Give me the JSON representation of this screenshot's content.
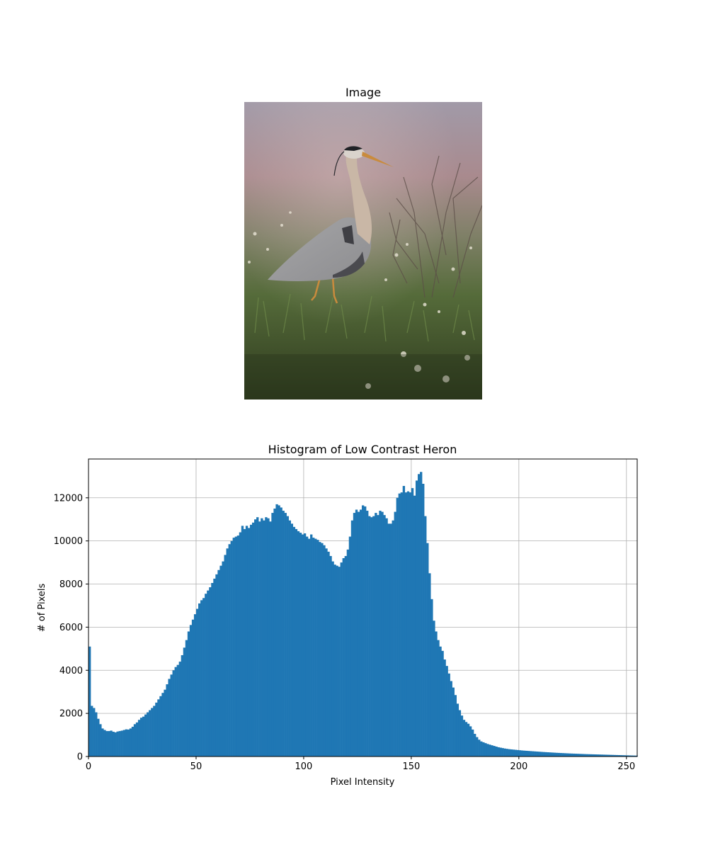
{
  "image_panel": {
    "title": "Image",
    "scene": {
      "sky_top": "#a19aa8",
      "sky_pink": "#a98a8e",
      "grass_dark": "#2e3a1d",
      "grass_mid": "#556b3a",
      "heron_body": "#8d8d90",
      "heron_neck": "#c9b7a6",
      "heron_beak": "#c98b3d"
    }
  },
  "chart_data": {
    "type": "bar",
    "title": "Histogram of Low Contrast Heron",
    "xlabel": "Pixel Intensity",
    "ylabel": "# of Pixels",
    "xlim": [
      0,
      255
    ],
    "ylim": [
      0,
      13800
    ],
    "xticks": [
      0,
      50,
      100,
      150,
      200,
      250
    ],
    "yticks": [
      0,
      2000,
      4000,
      6000,
      8000,
      10000,
      12000
    ],
    "grid": true,
    "bar_color": "#1f77b4",
    "bin_width": 1,
    "values": [
      5100,
      2350,
      2250,
      2050,
      1750,
      1500,
      1300,
      1230,
      1180,
      1180,
      1200,
      1150,
      1120,
      1160,
      1180,
      1200,
      1230,
      1260,
      1250,
      1300,
      1380,
      1500,
      1580,
      1700,
      1800,
      1850,
      1950,
      2050,
      2150,
      2250,
      2350,
      2500,
      2650,
      2800,
      2950,
      3100,
      3350,
      3600,
      3800,
      4000,
      4150,
      4250,
      4400,
      4700,
      5050,
      5400,
      5800,
      6100,
      6350,
      6600,
      6850,
      7100,
      7250,
      7350,
      7550,
      7700,
      7850,
      8050,
      8250,
      8450,
      8650,
      8850,
      9050,
      9350,
      9650,
      9850,
      10000,
      10150,
      10200,
      10250,
      10400,
      10700,
      10550,
      10700,
      10600,
      10750,
      10850,
      11000,
      11100,
      10900,
      11050,
      10950,
      11100,
      11050,
      10900,
      11300,
      11500,
      11700,
      11650,
      11550,
      11400,
      11300,
      11150,
      10950,
      10800,
      10650,
      10550,
      10450,
      10380,
      10300,
      10350,
      10200,
      10100,
      10300,
      10150,
      10100,
      10050,
      9950,
      9900,
      9800,
      9650,
      9500,
      9300,
      9050,
      8900,
      8850,
      8800,
      9000,
      9200,
      9300,
      9600,
      10200,
      10950,
      11300,
      11450,
      11350,
      11450,
      11650,
      11600,
      11400,
      11150,
      11100,
      11150,
      11300,
      11200,
      11400,
      11350,
      11200,
      11050,
      10800,
      10800,
      10950,
      11350,
      12000,
      12200,
      12250,
      12550,
      12250,
      12300,
      12250,
      12450,
      12100,
      12800,
      13100,
      13200,
      12650,
      11150,
      9900,
      8500,
      7300,
      6300,
      5800,
      5400,
      5100,
      4900,
      4500,
      4200,
      3850,
      3500,
      3200,
      2850,
      2450,
      2150,
      1900,
      1700,
      1600,
      1520,
      1400,
      1250,
      1050,
      900,
      780,
      700,
      660,
      620,
      580,
      550,
      520,
      490,
      460,
      430,
      410,
      390,
      370,
      355,
      340,
      330,
      320,
      310,
      300,
      290,
      280,
      272,
      265,
      258,
      250,
      243,
      236,
      229,
      222,
      215,
      208,
      202,
      196,
      190,
      184,
      178,
      172,
      167,
      162,
      157,
      152,
      147,
      142,
      138,
      134,
      130,
      126,
      122,
      118,
      114,
      110,
      107,
      104,
      101,
      98,
      95,
      92,
      89,
      86,
      83,
      80,
      77,
      74,
      71,
      68,
      65,
      62,
      59,
      56,
      53,
      50,
      47,
      44,
      41,
      38
    ]
  }
}
